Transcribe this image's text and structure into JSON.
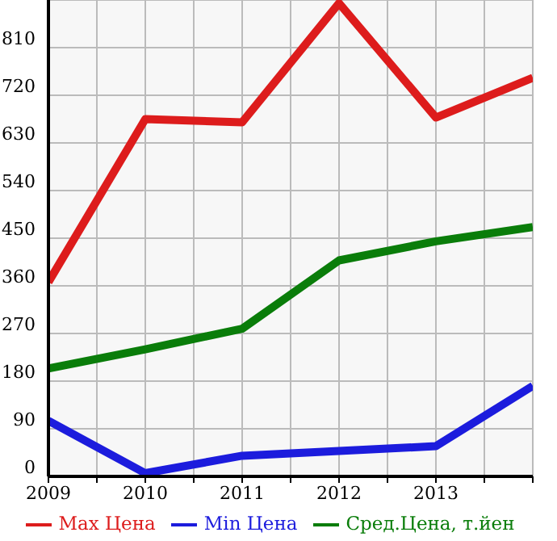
{
  "chart_data": {
    "type": "line",
    "x": [
      2009,
      2010,
      2011,
      2012,
      2013,
      2014
    ],
    "series": [
      {
        "name": "Max Цена",
        "color": "#dd1c1c",
        "values": [
          367,
          675,
          669,
          894,
          678,
          753
        ]
      },
      {
        "name": "Min Цена",
        "color": "#1c1cdd",
        "values": [
          105,
          6,
          39,
          48,
          57,
          171
        ]
      },
      {
        "name": "Сред.Цена, т.йен",
        "color": "#0a7d0a",
        "values": [
          204,
          240,
          279,
          408,
          444,
          471
        ]
      }
    ],
    "xlim": [
      2009,
      2014
    ],
    "xticks": [
      2009,
      {
        "value": 2009.5,
        "label": null
      },
      2010,
      {
        "value": 2010.5,
        "label": null
      },
      2011,
      {
        "value": 2011.5,
        "label": null
      },
      2012,
      {
        "value": 2012.5,
        "label": null
      },
      2013,
      {
        "value": 2013.5,
        "label": null
      },
      {
        "value": 2014,
        "label": null
      }
    ],
    "ylim": [
      0,
      900
    ],
    "yticks": [
      0,
      90,
      180,
      270,
      360,
      450,
      540,
      630,
      720,
      810,
      {
        "value": 900,
        "label": null
      }
    ],
    "grid": true,
    "legend": "bottom",
    "marker": "none",
    "line_style": "solid"
  }
}
